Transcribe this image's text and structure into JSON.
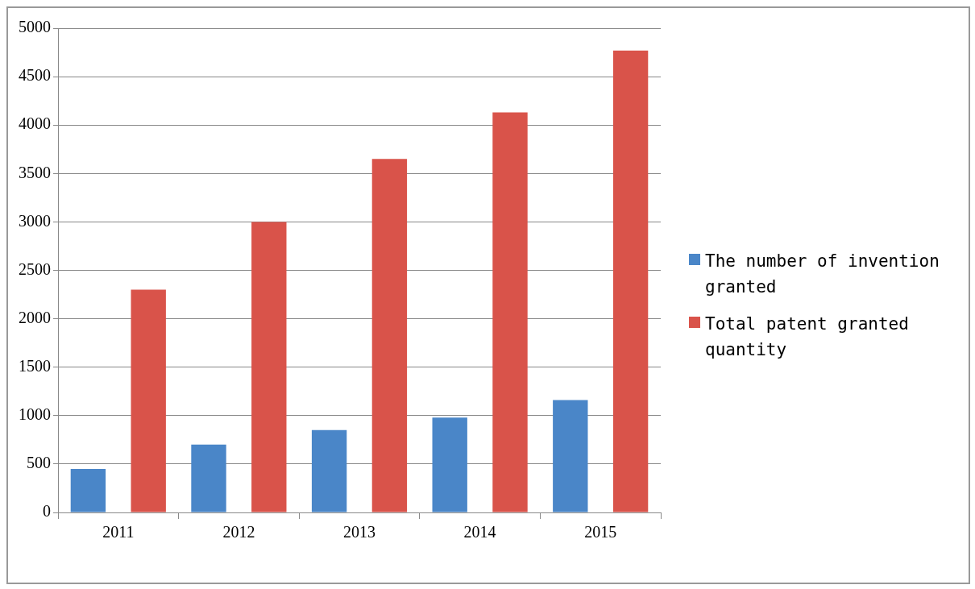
{
  "chart_data": {
    "type": "bar",
    "categories": [
      "2011",
      "2012",
      "2013",
      "2014",
      "2015"
    ],
    "series": [
      {
        "name": "The number of invention granted",
        "color": "#4a86c8",
        "values": [
          450,
          700,
          850,
          980,
          1160
        ]
      },
      {
        "name": "Total patent granted quantity",
        "color": "#d9534a",
        "values": [
          2300,
          3000,
          3650,
          4130,
          4770
        ]
      }
    ],
    "ylim": [
      0,
      5000
    ],
    "yticks": [
      0,
      500,
      1000,
      1500,
      2000,
      2500,
      3000,
      3500,
      4000,
      4500,
      5000
    ],
    "grid": "y",
    "legend": "right"
  }
}
